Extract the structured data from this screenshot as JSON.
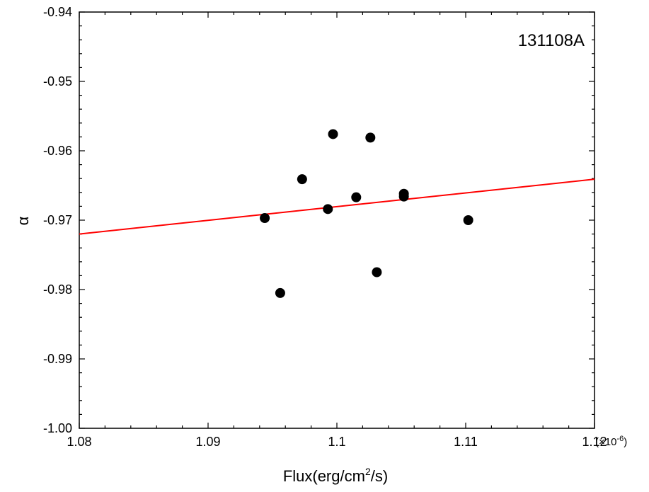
{
  "chart_data": {
    "type": "scatter",
    "title": "",
    "annotation": "131108A",
    "xlabel": "Flux(erg/cm",
    "xlabel_sup": "2",
    "xlabel_tail": "/s)",
    "ylabel": "α",
    "x_multiplier": "(×10",
    "x_multiplier_exp": "-6",
    "x_multiplier_close": ")",
    "xlim": [
      1.08,
      1.12
    ],
    "ylim": [
      -1.0,
      -0.94
    ],
    "x_ticks": [
      1.08,
      1.09,
      1.1,
      1.11,
      1.12
    ],
    "x_tick_labels": [
      "1.08",
      "1.09",
      "1.1",
      "1.11",
      "1.12"
    ],
    "y_ticks": [
      -0.94,
      -0.95,
      -0.96,
      -0.97,
      -0.98,
      -0.99,
      -1.0
    ],
    "y_tick_labels": [
      "-0.94",
      "-0.95",
      "-0.96",
      "-0.97",
      "-0.98",
      "-0.99",
      "-1.00"
    ],
    "grid": false,
    "series": [
      {
        "points": [
          {
            "x": 1.0944,
            "y": -0.9697
          },
          {
            "x": 1.0956,
            "y": -0.9805
          },
          {
            "x": 1.0973,
            "y": -0.9641
          },
          {
            "x": 1.0993,
            "y": -0.9684
          },
          {
            "x": 1.0997,
            "y": -0.9576
          },
          {
            "x": 1.1015,
            "y": -0.9667
          },
          {
            "x": 1.1026,
            "y": -0.9581
          },
          {
            "x": 1.1031,
            "y": -0.9775
          },
          {
            "x": 1.1052,
            "y": -0.9662
          },
          {
            "x": 1.1052,
            "y": -0.9666
          },
          {
            "x": 1.1102,
            "y": -0.97
          }
        ],
        "color": "#000000"
      }
    ],
    "fit_line": {
      "x": [
        1.08,
        1.12
      ],
      "y": [
        -0.972,
        -0.9641
      ],
      "color": "#ff0000"
    }
  }
}
